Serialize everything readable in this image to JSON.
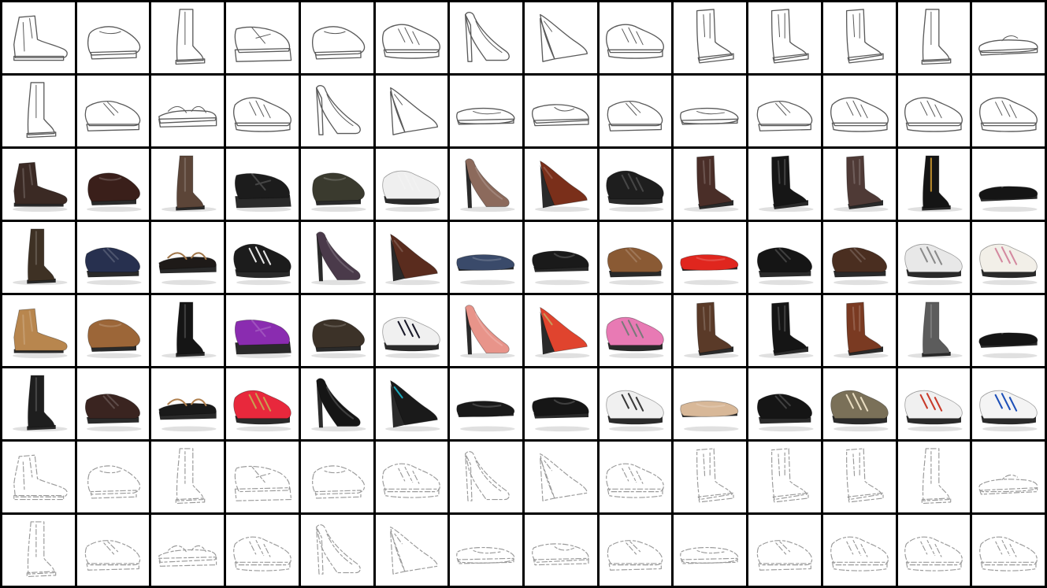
{
  "grid": {
    "rows": [
      {
        "kind": "sketch",
        "items": [
          {
            "shape": "ankle-boot"
          },
          {
            "shape": "clog"
          },
          {
            "shape": "tall-boot"
          },
          {
            "shape": "mary-jane"
          },
          {
            "shape": "clog"
          },
          {
            "shape": "sneaker"
          },
          {
            "shape": "pump"
          },
          {
            "shape": "wedge"
          },
          {
            "shape": "sneaker"
          },
          {
            "shape": "cowboy-boot"
          },
          {
            "shape": "cowboy-boot"
          },
          {
            "shape": "cowboy-boot"
          },
          {
            "shape": "tall-boot"
          },
          {
            "shape": "flip-flop"
          }
        ]
      },
      {
        "kind": "sketch",
        "items": [
          {
            "shape": "tall-boot"
          },
          {
            "shape": "oxford"
          },
          {
            "shape": "sandal"
          },
          {
            "shape": "sneaker"
          },
          {
            "shape": "pump"
          },
          {
            "shape": "wedge"
          },
          {
            "shape": "flat"
          },
          {
            "shape": "loafer"
          },
          {
            "shape": "oxford"
          },
          {
            "shape": "flat"
          },
          {
            "shape": "oxford"
          },
          {
            "shape": "sneaker"
          },
          {
            "shape": "sneaker"
          },
          {
            "shape": "sneaker"
          }
        ]
      },
      {
        "kind": "photo",
        "items": [
          {
            "shape": "ankle-boot",
            "color": "#3b2a24"
          },
          {
            "shape": "clog",
            "color": "#3a1f1a"
          },
          {
            "shape": "tall-boot",
            "color": "#5c4538"
          },
          {
            "shape": "mary-jane",
            "color": "#1c1c1c"
          },
          {
            "shape": "clog",
            "color": "#3a3a2e"
          },
          {
            "shape": "sneaker",
            "color": "#efefef"
          },
          {
            "shape": "pump",
            "color": "#8c6a5c"
          },
          {
            "shape": "wedge",
            "color": "#7a2f1a"
          },
          {
            "shape": "sneaker",
            "color": "#1e1e1e"
          },
          {
            "shape": "cowboy-boot",
            "color": "#4a2e28"
          },
          {
            "shape": "cowboy-boot",
            "color": "#161616"
          },
          {
            "shape": "cowboy-boot",
            "color": "#4f3a36"
          },
          {
            "shape": "tall-boot",
            "color": "#151515",
            "accent": "#b8892c"
          },
          {
            "shape": "flip-flop",
            "color": "#151515"
          }
        ]
      },
      {
        "kind": "photo",
        "items": [
          {
            "shape": "tall-boot",
            "color": "#3e3124"
          },
          {
            "shape": "oxford",
            "color": "#27304f"
          },
          {
            "shape": "sandal",
            "color": "#1e1a18",
            "accent": "#a0764a"
          },
          {
            "shape": "sneaker",
            "color": "#1c1c1c",
            "accent": "#e6e6e6"
          },
          {
            "shape": "pump",
            "color": "#4a3a4a"
          },
          {
            "shape": "wedge",
            "color": "#5a2c1e"
          },
          {
            "shape": "flat",
            "color": "#3a4a6a"
          },
          {
            "shape": "loafer",
            "color": "#1a1a1a"
          },
          {
            "shape": "oxford",
            "color": "#8a5a34"
          },
          {
            "shape": "flat",
            "color": "#e0261e"
          },
          {
            "shape": "oxford",
            "color": "#151515"
          },
          {
            "shape": "oxford",
            "color": "#4a2e20"
          },
          {
            "shape": "sneaker",
            "color": "#e8e8e8",
            "accent": "#8a8a8a"
          },
          {
            "shape": "sneaker",
            "color": "#f2efe8",
            "accent": "#d48aa0"
          }
        ]
      },
      {
        "kind": "photo",
        "items": [
          {
            "shape": "ankle-boot",
            "color": "#b8864e"
          },
          {
            "shape": "clog",
            "color": "#9c6638"
          },
          {
            "shape": "tall-boot",
            "color": "#151515"
          },
          {
            "shape": "mary-jane",
            "color": "#8a2cb0"
          },
          {
            "shape": "clog",
            "color": "#3c3228"
          },
          {
            "shape": "sneaker",
            "color": "#f0f0f0",
            "accent": "#1a1a2a"
          },
          {
            "shape": "pump",
            "color": "#e8948a"
          },
          {
            "shape": "wedge",
            "color": "#e0442e",
            "accent": "#c89a5a"
          },
          {
            "shape": "sneaker",
            "color": "#e87ab4",
            "accent": "#7a7a7a"
          },
          {
            "shape": "cowboy-boot",
            "color": "#5a3a28"
          },
          {
            "shape": "cowboy-boot",
            "color": "#151515"
          },
          {
            "shape": "cowboy-boot",
            "color": "#7a3a22"
          },
          {
            "shape": "tall-boot",
            "color": "#5c5c5c"
          },
          {
            "shape": "flip-flop",
            "color": "#151515"
          }
        ]
      },
      {
        "kind": "photo",
        "items": [
          {
            "shape": "tall-boot",
            "color": "#1e1e1e"
          },
          {
            "shape": "oxford",
            "color": "#3a2420"
          },
          {
            "shape": "sandal",
            "color": "#1a1a1a",
            "accent": "#b0804e"
          },
          {
            "shape": "sneaker",
            "color": "#e8283c",
            "accent": "#c8a050"
          },
          {
            "shape": "pump",
            "color": "#151515"
          },
          {
            "shape": "wedge",
            "color": "#1a1a1a",
            "accent": "#1aa6b8"
          },
          {
            "shape": "flat",
            "color": "#1a1a1a"
          },
          {
            "shape": "loafer",
            "color": "#161616"
          },
          {
            "shape": "sneaker",
            "color": "#f0f0f0",
            "accent": "#3a3a3a"
          },
          {
            "shape": "flat",
            "color": "#d8b898"
          },
          {
            "shape": "oxford",
            "color": "#151515"
          },
          {
            "shape": "sneaker",
            "color": "#7a7058",
            "accent": "#e8dcc0"
          },
          {
            "shape": "sneaker",
            "color": "#f0f0f0",
            "accent": "#c83a2a"
          },
          {
            "shape": "sneaker",
            "color": "#f4f4f4",
            "accent": "#1e50b8"
          }
        ]
      },
      {
        "kind": "faint",
        "items": [
          {
            "shape": "ankle-boot"
          },
          {
            "shape": "clog"
          },
          {
            "shape": "tall-boot"
          },
          {
            "shape": "mary-jane"
          },
          {
            "shape": "clog"
          },
          {
            "shape": "sneaker"
          },
          {
            "shape": "pump"
          },
          {
            "shape": "wedge"
          },
          {
            "shape": "sneaker"
          },
          {
            "shape": "cowboy-boot"
          },
          {
            "shape": "cowboy-boot"
          },
          {
            "shape": "cowboy-boot"
          },
          {
            "shape": "tall-boot"
          },
          {
            "shape": "flip-flop"
          }
        ]
      },
      {
        "kind": "faint",
        "items": [
          {
            "shape": "tall-boot"
          },
          {
            "shape": "oxford"
          },
          {
            "shape": "sandal"
          },
          {
            "shape": "sneaker"
          },
          {
            "shape": "pump"
          },
          {
            "shape": "wedge"
          },
          {
            "shape": "flat"
          },
          {
            "shape": "loafer"
          },
          {
            "shape": "oxford"
          },
          {
            "shape": "flat"
          },
          {
            "shape": "oxford"
          },
          {
            "shape": "sneaker"
          },
          {
            "shape": "sneaker"
          },
          {
            "shape": "sneaker"
          }
        ]
      }
    ]
  }
}
